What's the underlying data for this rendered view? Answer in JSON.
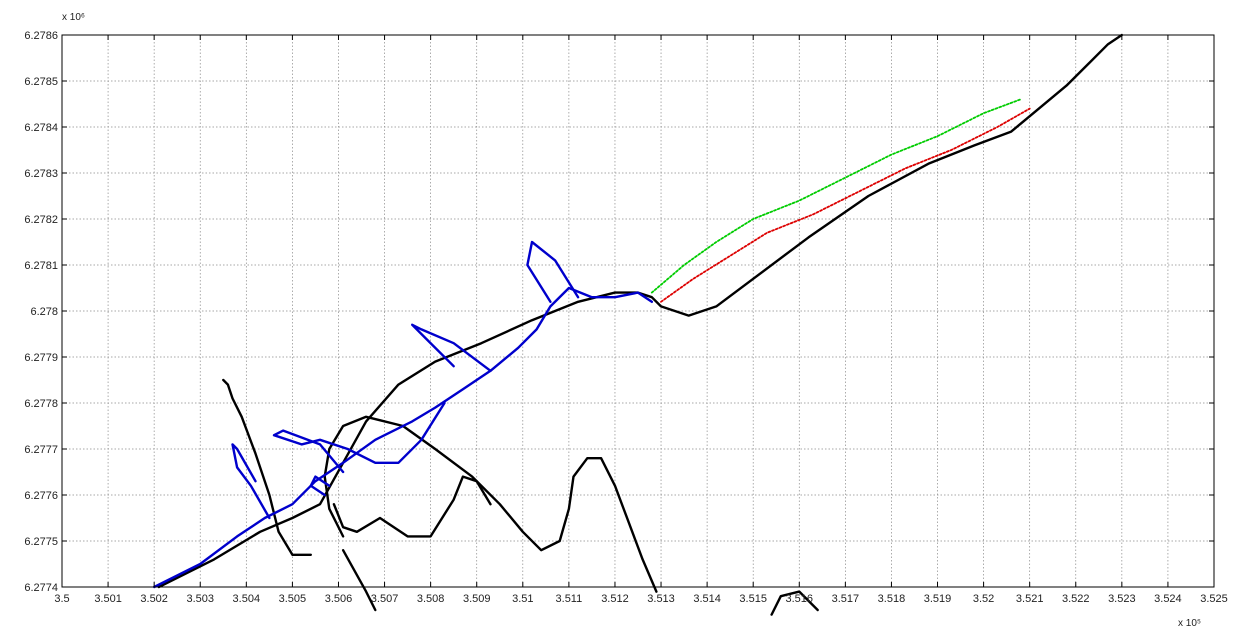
{
  "chart_data": {
    "type": "line",
    "title": "",
    "xlabel": "",
    "ylabel": "",
    "x_exponent_label": "x 10⁵",
    "y_exponent_label": "x 10⁶",
    "xlim": [
      3.5,
      3.525
    ],
    "ylim": [
      6.2774,
      6.2786
    ],
    "grid": true,
    "x_ticks": [
      3.5,
      3.501,
      3.502,
      3.503,
      3.504,
      3.505,
      3.506,
      3.507,
      3.508,
      3.509,
      3.51,
      3.511,
      3.512,
      3.513,
      3.514,
      3.515,
      3.516,
      3.517,
      3.518,
      3.519,
      3.52,
      3.521,
      3.522,
      3.523,
      3.524,
      3.525
    ],
    "x_tick_labels": [
      "3.5",
      "3.501",
      "3.502",
      "3.503",
      "3.504",
      "3.505",
      "3.506",
      "3.507",
      "3.508",
      "3.509",
      "3.51",
      "3.511",
      "3.512",
      "3.513",
      "3.514",
      "3.515",
      "3.516",
      "3.517",
      "3.518",
      "3.519",
      "3.52",
      "3.521",
      "3.522",
      "3.523",
      "3.524",
      "3.525"
    ],
    "y_ticks": [
      6.2774,
      6.2775,
      6.2776,
      6.2777,
      6.2778,
      6.2779,
      6.278,
      6.2781,
      6.2782,
      6.2783,
      6.2784,
      6.2785,
      6.2786
    ],
    "y_tick_labels": [
      "6.2774",
      "6.2775",
      "6.2776",
      "6.2777",
      "6.2778",
      "6.2779",
      "6.278",
      "6.2781",
      "6.2782",
      "6.2783",
      "6.2784",
      "6.2785",
      "6.2786"
    ],
    "series": [
      {
        "color": "#000000",
        "style": "solid",
        "x": [
          3.5021,
          3.5033,
          3.5043,
          3.505,
          3.5056,
          3.5061,
          3.5066,
          3.5073,
          3.5081,
          3.5091,
          3.5102,
          3.5112,
          3.512,
          3.5125,
          3.5128,
          3.513,
          3.5133,
          3.5136,
          3.5142,
          3.515,
          3.5162,
          3.5175,
          3.5188,
          3.5198,
          3.5206,
          3.5212,
          3.5218,
          3.5223,
          3.5227,
          3.523
        ],
        "y": [
          6.2774,
          6.27746,
          6.27752,
          6.27755,
          6.27758,
          6.27767,
          6.27776,
          6.27784,
          6.27789,
          6.27793,
          6.27798,
          6.27802,
          6.27804,
          6.27804,
          6.27803,
          6.27801,
          6.278,
          6.27799,
          6.27801,
          6.27807,
          6.27816,
          6.27825,
          6.27832,
          6.27836,
          6.27839,
          6.27844,
          6.27849,
          6.27854,
          6.27858,
          6.2786
        ]
      },
      {
        "color": "#000000",
        "style": "solid",
        "x": [
          3.5054,
          3.505,
          3.5047,
          3.5045,
          3.5042,
          3.5039,
          3.5037,
          3.5036,
          3.5035
        ],
        "y": [
          6.27747,
          6.27747,
          6.27752,
          6.2776,
          6.27769,
          6.27777,
          6.27781,
          6.27784,
          6.27785
        ]
      },
      {
        "color": "#000000",
        "style": "solid",
        "x": [
          3.5061,
          3.5058,
          3.5057,
          3.5058,
          3.5061,
          3.5066,
          3.5074,
          3.5081,
          3.5089,
          3.5095,
          3.51,
          3.5104,
          3.5108,
          3.511,
          3.5111,
          3.5114,
          3.5117,
          3.512,
          3.5123,
          3.5126,
          3.5129
        ],
        "y": [
          6.27751,
          6.27757,
          6.27764,
          6.2777,
          6.27775,
          6.27777,
          6.27775,
          6.2777,
          6.27764,
          6.27758,
          6.27752,
          6.27748,
          6.2775,
          6.27757,
          6.27764,
          6.27768,
          6.27768,
          6.27762,
          6.27754,
          6.27746,
          6.27739
        ]
      },
      {
        "color": "#000000",
        "style": "solid",
        "x": [
          3.5059,
          3.5061,
          3.5064,
          3.5069,
          3.5075,
          3.508,
          3.5085,
          3.5087,
          3.509,
          3.5093
        ],
        "y": [
          6.27758,
          6.27753,
          6.27752,
          6.27755,
          6.27751,
          6.27751,
          6.27759,
          6.27764,
          6.27763,
          6.27758
        ]
      },
      {
        "color": "#000000",
        "style": "solid",
        "x": [
          3.5061,
          3.5066,
          3.5068
        ],
        "y": [
          6.27748,
          6.27739,
          6.27735
        ]
      },
      {
        "color": "#000000",
        "style": "solid",
        "x": [
          3.5154,
          3.5156,
          3.516,
          3.5164
        ],
        "y": [
          6.27734,
          6.27738,
          6.27739,
          6.27735
        ]
      },
      {
        "color": "#0000cc",
        "style": "solid",
        "x": [
          3.502,
          3.503,
          3.5038,
          3.5044,
          3.505,
          3.5055,
          3.5061,
          3.5068,
          3.5076,
          3.5081,
          3.5087,
          3.5093,
          3.5099,
          3.5103,
          3.5106,
          3.511,
          3.5115,
          3.512,
          3.5125,
          3.5128
        ],
        "y": [
          6.2774,
          6.27745,
          6.27751,
          6.27755,
          6.27758,
          6.27763,
          6.27767,
          6.27772,
          6.27776,
          6.27779,
          6.27783,
          6.27787,
          6.27792,
          6.27796,
          6.27801,
          6.27805,
          6.27803,
          6.27803,
          6.27804,
          6.27802
        ]
      },
      {
        "color": "#0000cc",
        "style": "solid",
        "x": [
          3.5106,
          3.5101,
          3.5102,
          3.5107,
          3.5112
        ],
        "y": [
          6.27802,
          6.2781,
          6.27815,
          6.27811,
          6.27803
        ]
      },
      {
        "color": "#0000cc",
        "style": "solid",
        "x": [
          3.5093,
          3.5085,
          3.5078,
          3.5076,
          3.5079,
          3.5085
        ],
        "y": [
          6.27787,
          6.27793,
          6.27796,
          6.27797,
          6.27794,
          6.27788
        ]
      },
      {
        "color": "#0000cc",
        "style": "solid",
        "x": [
          3.5083,
          3.5078,
          3.5073,
          3.5068,
          3.5062,
          3.5056,
          3.5052,
          3.5046,
          3.5048,
          3.5056,
          3.5061
        ],
        "y": [
          6.2778,
          6.27772,
          6.27767,
          6.27767,
          6.2777,
          6.27772,
          6.27771,
          6.27773,
          6.27774,
          6.27771,
          6.27765
        ]
      },
      {
        "color": "#0000cc",
        "style": "solid",
        "x": [
          3.5045,
          3.5041,
          3.5038,
          3.5037,
          3.5038,
          3.5042
        ],
        "y": [
          6.27755,
          6.27762,
          6.27766,
          6.27771,
          6.2777,
          6.27763
        ]
      },
      {
        "color": "#0000cc",
        "style": "solid",
        "x": [
          3.5057,
          3.5054,
          3.5055,
          3.5058
        ],
        "y": [
          6.2776,
          6.27762,
          6.27764,
          6.27762
        ]
      },
      {
        "color": "#00cc00",
        "style": "dotted",
        "x": [
          3.5128,
          3.5135,
          3.5142,
          3.515,
          3.516,
          3.517,
          3.518,
          3.519,
          3.52,
          3.5208
        ],
        "y": [
          6.27804,
          6.2781,
          6.27815,
          6.2782,
          6.27824,
          6.27829,
          6.27834,
          6.27838,
          6.27843,
          6.27846
        ]
      },
      {
        "color": "#dd0000",
        "style": "dotted",
        "x": [
          3.513,
          3.5137,
          3.5145,
          3.5153,
          3.5163,
          3.5173,
          3.5183,
          3.5193,
          3.5203,
          3.521
        ],
        "y": [
          6.27802,
          6.27807,
          6.27812,
          6.27817,
          6.27821,
          6.27826,
          6.27831,
          6.27835,
          6.2784,
          6.27844
        ]
      }
    ]
  }
}
